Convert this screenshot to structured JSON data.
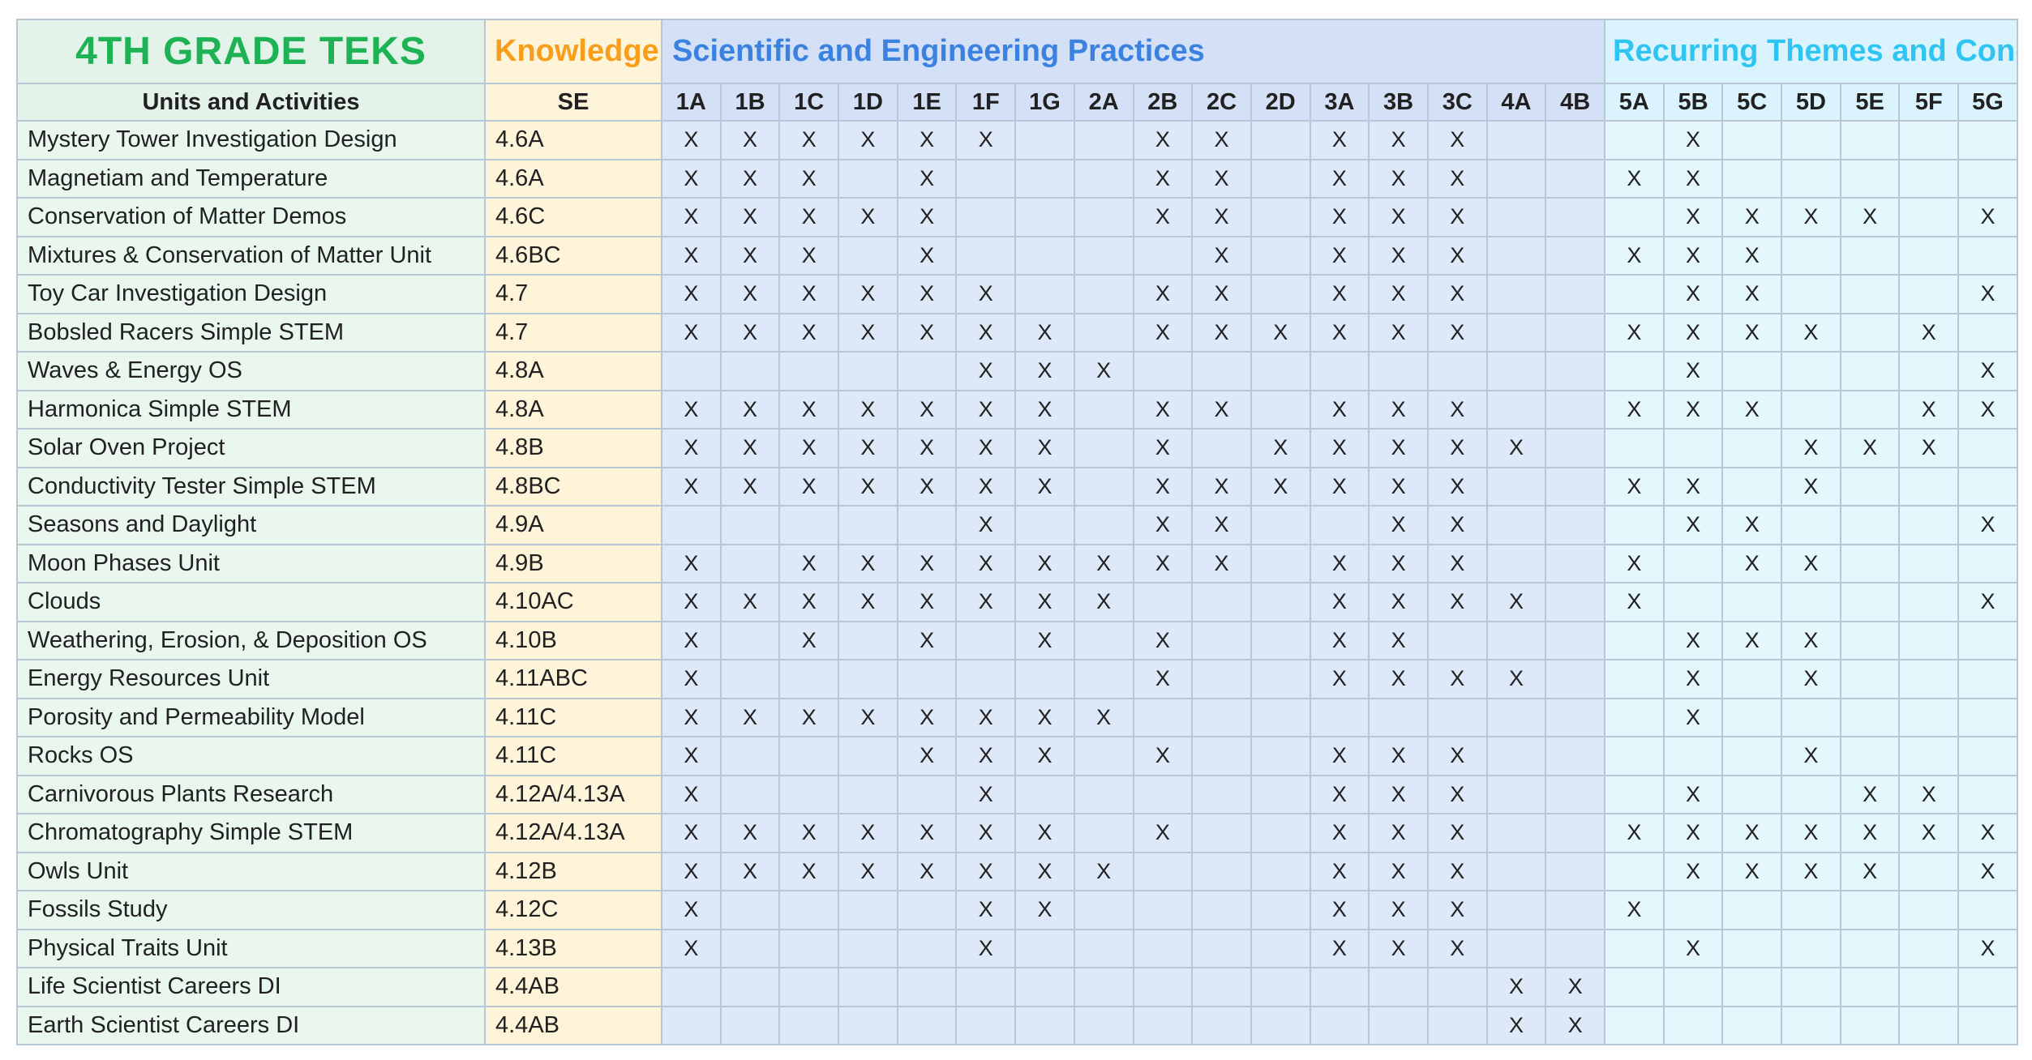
{
  "title": "4TH GRADE TEKS",
  "header": {
    "knowledge_label": "Knowledge",
    "sep_section_label": "Scientific and Engineering Practices",
    "themes_section_label": "Recurring Themes and Concepts",
    "units_col_label": "Units and Activities",
    "se_col_label": "SE"
  },
  "columns": {
    "sep": [
      "1A",
      "1B",
      "1C",
      "1D",
      "1E",
      "1F",
      "1G",
      "2A",
      "2B",
      "2C",
      "2D",
      "3A",
      "3B",
      "3C",
      "4A",
      "4B"
    ],
    "themes": [
      "5A",
      "5B",
      "5C",
      "5D",
      "5E",
      "5F",
      "5G"
    ]
  },
  "mark_glyph": "X",
  "colors": {
    "title_green": "#1db254",
    "knowledge_orange": "#f89e1b",
    "sep_blue": "#3b82e0",
    "themes_cyan": "#2fc5f3",
    "mint_bg": "#e9f7ef",
    "cream_bg": "#fdf4da",
    "sep_bg": "#dde8f8",
    "themes_bg": "#e4f7fd",
    "grid_border": "#b9c6d6"
  },
  "rows": [
    {
      "label": "Mystery Tower Investigation Design",
      "se": "4.6A",
      "marks": [
        "1A",
        "1B",
        "1C",
        "1D",
        "1E",
        "1F",
        "2B",
        "2C",
        "3A",
        "3B",
        "3C",
        "5B"
      ]
    },
    {
      "label": "Magnetiam and Temperature",
      "se": "4.6A",
      "marks": [
        "1A",
        "1B",
        "1C",
        "1E",
        "2B",
        "2C",
        "3A",
        "3B",
        "3C",
        "5A",
        "5B"
      ]
    },
    {
      "label": "Conservation of Matter Demos",
      "se": "4.6C",
      "marks": [
        "1A",
        "1B",
        "1C",
        "1D",
        "1E",
        "2B",
        "2C",
        "3A",
        "3B",
        "3C",
        "5B",
        "5C",
        "5D",
        "5E",
        "5G"
      ]
    },
    {
      "label": "Mixtures & Conservation of Matter Unit",
      "se": "4.6BC",
      "marks": [
        "1A",
        "1B",
        "1C",
        "1E",
        "2C",
        "3A",
        "3B",
        "3C",
        "5A",
        "5B",
        "5C"
      ]
    },
    {
      "label": "Toy Car Investigation Design",
      "se": "4.7",
      "marks": [
        "1A",
        "1B",
        "1C",
        "1D",
        "1E",
        "1F",
        "2B",
        "2C",
        "3A",
        "3B",
        "3C",
        "5B",
        "5C",
        "5G"
      ]
    },
    {
      "label": "Bobsled Racers Simple STEM",
      "se": "4.7",
      "marks": [
        "1A",
        "1B",
        "1C",
        "1D",
        "1E",
        "1F",
        "1G",
        "2B",
        "2C",
        "2D",
        "3A",
        "3B",
        "3C",
        "5A",
        "5B",
        "5C",
        "5D",
        "5F"
      ]
    },
    {
      "label": "Waves & Energy OS",
      "se": "4.8A",
      "marks": [
        "1F",
        "1G",
        "2A",
        "5B",
        "5G"
      ]
    },
    {
      "label": "Harmonica Simple STEM",
      "se": "4.8A",
      "marks": [
        "1A",
        "1B",
        "1C",
        "1D",
        "1E",
        "1F",
        "1G",
        "2B",
        "2C",
        "3A",
        "3B",
        "3C",
        "5A",
        "5B",
        "5C",
        "5F",
        "5G"
      ]
    },
    {
      "label": "Solar Oven Project",
      "se": "4.8B",
      "marks": [
        "1A",
        "1B",
        "1C",
        "1D",
        "1E",
        "1F",
        "1G",
        "2B",
        "2D",
        "3A",
        "3B",
        "3C",
        "4A",
        "5D",
        "5E",
        "5F"
      ]
    },
    {
      "label": "Conductivity Tester Simple STEM",
      "se": "4.8BC",
      "marks": [
        "1A",
        "1B",
        "1C",
        "1D",
        "1E",
        "1F",
        "1G",
        "2B",
        "2C",
        "2D",
        "3A",
        "3B",
        "3C",
        "5A",
        "5B",
        "5D"
      ]
    },
    {
      "label": "Seasons and Daylight",
      "se": "4.9A",
      "marks": [
        "1F",
        "2B",
        "2C",
        "3B",
        "3C",
        "5B",
        "5C",
        "5G"
      ]
    },
    {
      "label": "Moon Phases Unit",
      "se": "4.9B",
      "marks": [
        "1A",
        "1C",
        "1D",
        "1E",
        "1F",
        "1G",
        "2A",
        "2B",
        "2C",
        "3A",
        "3B",
        "3C",
        "5A",
        "5C",
        "5D"
      ]
    },
    {
      "label": "Clouds",
      "se": "4.10AC",
      "marks": [
        "1A",
        "1B",
        "1C",
        "1D",
        "1E",
        "1F",
        "1G",
        "2A",
        "3A",
        "3B",
        "3C",
        "4A",
        "5A",
        "5G"
      ]
    },
    {
      "label": "Weathering, Erosion, & Deposition OS",
      "se": "4.10B",
      "marks": [
        "1A",
        "1C",
        "1E",
        "1G",
        "2B",
        "3A",
        "3B",
        "5B",
        "5C",
        "5D"
      ]
    },
    {
      "label": "Energy Resources Unit",
      "se": "4.11ABC",
      "marks": [
        "1A",
        "2B",
        "3A",
        "3B",
        "3C",
        "4A",
        "5B",
        "5D"
      ]
    },
    {
      "label": "Porosity and Permeability Model",
      "se": "4.11C",
      "marks": [
        "1A",
        "1B",
        "1C",
        "1D",
        "1E",
        "1F",
        "1G",
        "2A",
        "5B"
      ]
    },
    {
      "label": "Rocks OS",
      "se": "4.11C",
      "marks": [
        "1A",
        "1E",
        "1F",
        "1G",
        "2B",
        "3A",
        "3B",
        "3C",
        "5D"
      ]
    },
    {
      "label": "Carnivorous Plants Research",
      "se": "4.12A/4.13A",
      "marks": [
        "1A",
        "1F",
        "3A",
        "3B",
        "3C",
        "5B",
        "5E",
        "5F"
      ]
    },
    {
      "label": "Chromatography Simple STEM",
      "se": "4.12A/4.13A",
      "marks": [
        "1A",
        "1B",
        "1C",
        "1D",
        "1E",
        "1F",
        "1G",
        "2B",
        "3A",
        "3B",
        "3C",
        "5A",
        "5B",
        "5C",
        "5D",
        "5E",
        "5F",
        "5G"
      ]
    },
    {
      "label": "Owls Unit",
      "se": "4.12B",
      "marks": [
        "1A",
        "1B",
        "1C",
        "1D",
        "1E",
        "1F",
        "1G",
        "2A",
        "3A",
        "3B",
        "3C",
        "5B",
        "5C",
        "5D",
        "5E",
        "5G"
      ]
    },
    {
      "label": "Fossils Study",
      "se": "4.12C",
      "marks": [
        "1A",
        "1F",
        "1G",
        "3A",
        "3B",
        "3C",
        "5A"
      ]
    },
    {
      "label": "Physical Traits Unit",
      "se": "4.13B",
      "marks": [
        "1A",
        "1F",
        "3A",
        "3B",
        "3C",
        "5B",
        "5G"
      ]
    },
    {
      "label": "Life Scientist Careers DI",
      "se": "4.4AB",
      "marks": [
        "4A",
        "4B"
      ]
    },
    {
      "label": "Earth Scientist Careers DI",
      "se": "4.4AB",
      "marks": [
        "4A",
        "4B"
      ]
    }
  ]
}
